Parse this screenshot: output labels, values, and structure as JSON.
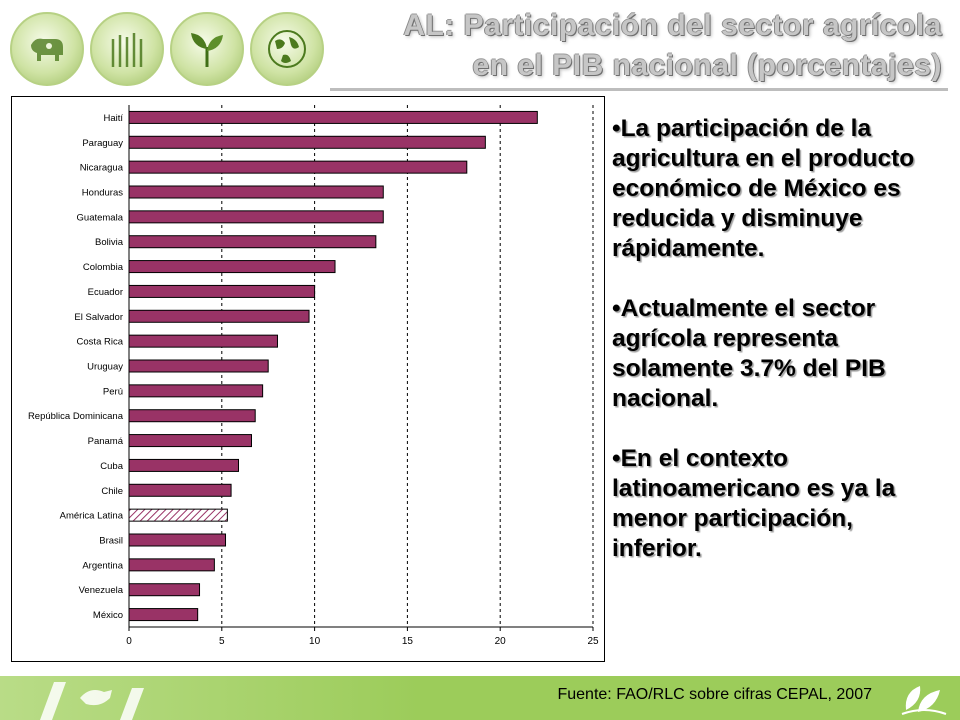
{
  "header": {
    "title_line1": "AL: Participación del sector agrícola",
    "title_line2": "en el PIB nacional (porcentajes)",
    "emblems": [
      "cow-icon",
      "crop-field-icon",
      "plant-leaves-icon",
      "globe-icon"
    ]
  },
  "chart_data": {
    "type": "bar",
    "orientation": "horizontal",
    "categories": [
      "Haití",
      "Paraguay",
      "Nicaragua",
      "Honduras",
      "Guatemala",
      "Bolivia",
      "Colombia",
      "Ecuador",
      "El Salvador",
      "Costa Rica",
      "Uruguay",
      "Perú",
      "República Dominicana",
      "Panamá",
      "Cuba",
      "Chile",
      "América Latina",
      "Brasil",
      "Argentina",
      "Venezuela",
      "México"
    ],
    "values": [
      22.0,
      19.2,
      18.2,
      13.7,
      13.7,
      13.3,
      11.1,
      10.0,
      9.7,
      8.0,
      7.5,
      7.2,
      6.8,
      6.6,
      5.9,
      5.5,
      5.3,
      5.2,
      4.6,
      3.8,
      3.7
    ],
    "highlight": "América Latina",
    "xlim": [
      0,
      25
    ],
    "xticks": [
      0,
      5,
      10,
      15,
      20,
      25
    ],
    "grid": "vertical dashed",
    "bar_color": "#993366",
    "highlight_fill": "hatched"
  },
  "bullets": [
    "La participación de la agricultura en el producto económico de México es reducida y disminuye rápidamente.",
    "Actualmente el sector agrícola representa solamente 3.7% del PIB nacional.",
    "En el contexto latinoamericano es ya la menor participación, inferior."
  ],
  "bullet_marker": "•",
  "footer": {
    "source": "Fuente: FAO/RLC sobre cifras CEPAL, 2007",
    "color": "#9ccc5a"
  }
}
